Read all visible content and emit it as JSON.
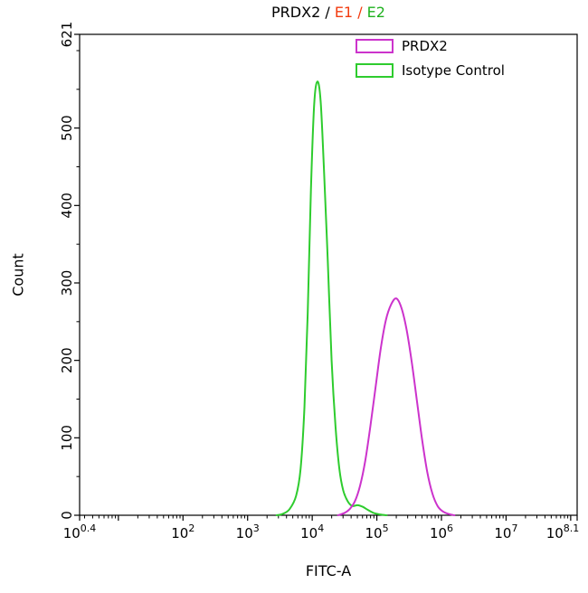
{
  "title": {
    "parts": [
      {
        "text": "PRDX2 / ",
        "color": "#000000"
      },
      {
        "text": "E1 / ",
        "color": "#f23b0f"
      },
      {
        "text": "E2",
        "color": "#1fb11f"
      }
    ]
  },
  "legend": {
    "items": [
      {
        "label": "PRDX2",
        "color": "#cc33cc"
      },
      {
        "label": "Isotype Control",
        "color": "#2ecc2e"
      }
    ]
  },
  "chart_data": {
    "type": "line",
    "title": "PRDX2 / E1 / E2",
    "xlabel": "FITC-A",
    "ylabel": "Count",
    "x_scale": "log10",
    "x_range_log10": [
      0.4,
      8.1
    ],
    "x_major_ticks_log10": [
      0.4,
      2,
      3,
      4,
      5,
      6,
      7,
      8.1
    ],
    "x_tick_labels": [
      {
        "base": "10",
        "exp": "0.4"
      },
      {
        "base": "10",
        "exp": "2"
      },
      {
        "base": "10",
        "exp": "3"
      },
      {
        "base": "10",
        "exp": "4"
      },
      {
        "base": "10",
        "exp": "5"
      },
      {
        "base": "10",
        "exp": "6"
      },
      {
        "base": "10",
        "exp": "7"
      },
      {
        "base": "10",
        "exp": "8.1"
      }
    ],
    "x_unlabeled_decade_ticks": [
      1,
      8
    ],
    "ylim": [
      0,
      621
    ],
    "y_major_ticks": [
      0,
      100,
      200,
      300,
      400,
      500,
      621
    ],
    "y_minor_tick_step": 50,
    "grid": false,
    "legend_position": "top-right",
    "series": [
      {
        "name": "Isotype Control",
        "color": "#2ecc2e",
        "peak_log10x": 4.08,
        "peak_count": 560,
        "points_log10x_count": [
          [
            3.45,
            0
          ],
          [
            3.55,
            2
          ],
          [
            3.65,
            8
          ],
          [
            3.75,
            25
          ],
          [
            3.82,
            60
          ],
          [
            3.88,
            140
          ],
          [
            3.93,
            260
          ],
          [
            3.98,
            420
          ],
          [
            4.03,
            530
          ],
          [
            4.08,
            560
          ],
          [
            4.13,
            535
          ],
          [
            4.18,
            450
          ],
          [
            4.24,
            330
          ],
          [
            4.3,
            200
          ],
          [
            4.36,
            115
          ],
          [
            4.42,
            60
          ],
          [
            4.48,
            32
          ],
          [
            4.55,
            18
          ],
          [
            4.62,
            12
          ],
          [
            4.7,
            13
          ],
          [
            4.78,
            11
          ],
          [
            4.86,
            7
          ],
          [
            4.95,
            3
          ],
          [
            5.05,
            1
          ],
          [
            5.15,
            0
          ]
        ]
      },
      {
        "name": "PRDX2",
        "color": "#cc33cc",
        "peak_log10x": 5.3,
        "peak_count": 280,
        "points_log10x_count": [
          [
            4.4,
            0
          ],
          [
            4.5,
            3
          ],
          [
            4.58,
            8
          ],
          [
            4.66,
            18
          ],
          [
            4.74,
            38
          ],
          [
            4.82,
            70
          ],
          [
            4.9,
            115
          ],
          [
            4.98,
            165
          ],
          [
            5.06,
            215
          ],
          [
            5.14,
            252
          ],
          [
            5.22,
            272
          ],
          [
            5.3,
            280
          ],
          [
            5.38,
            268
          ],
          [
            5.46,
            240
          ],
          [
            5.54,
            198
          ],
          [
            5.62,
            148
          ],
          [
            5.7,
            98
          ],
          [
            5.78,
            56
          ],
          [
            5.86,
            28
          ],
          [
            5.94,
            12
          ],
          [
            6.02,
            5
          ],
          [
            6.1,
            2
          ],
          [
            6.2,
            0
          ]
        ]
      }
    ]
  }
}
